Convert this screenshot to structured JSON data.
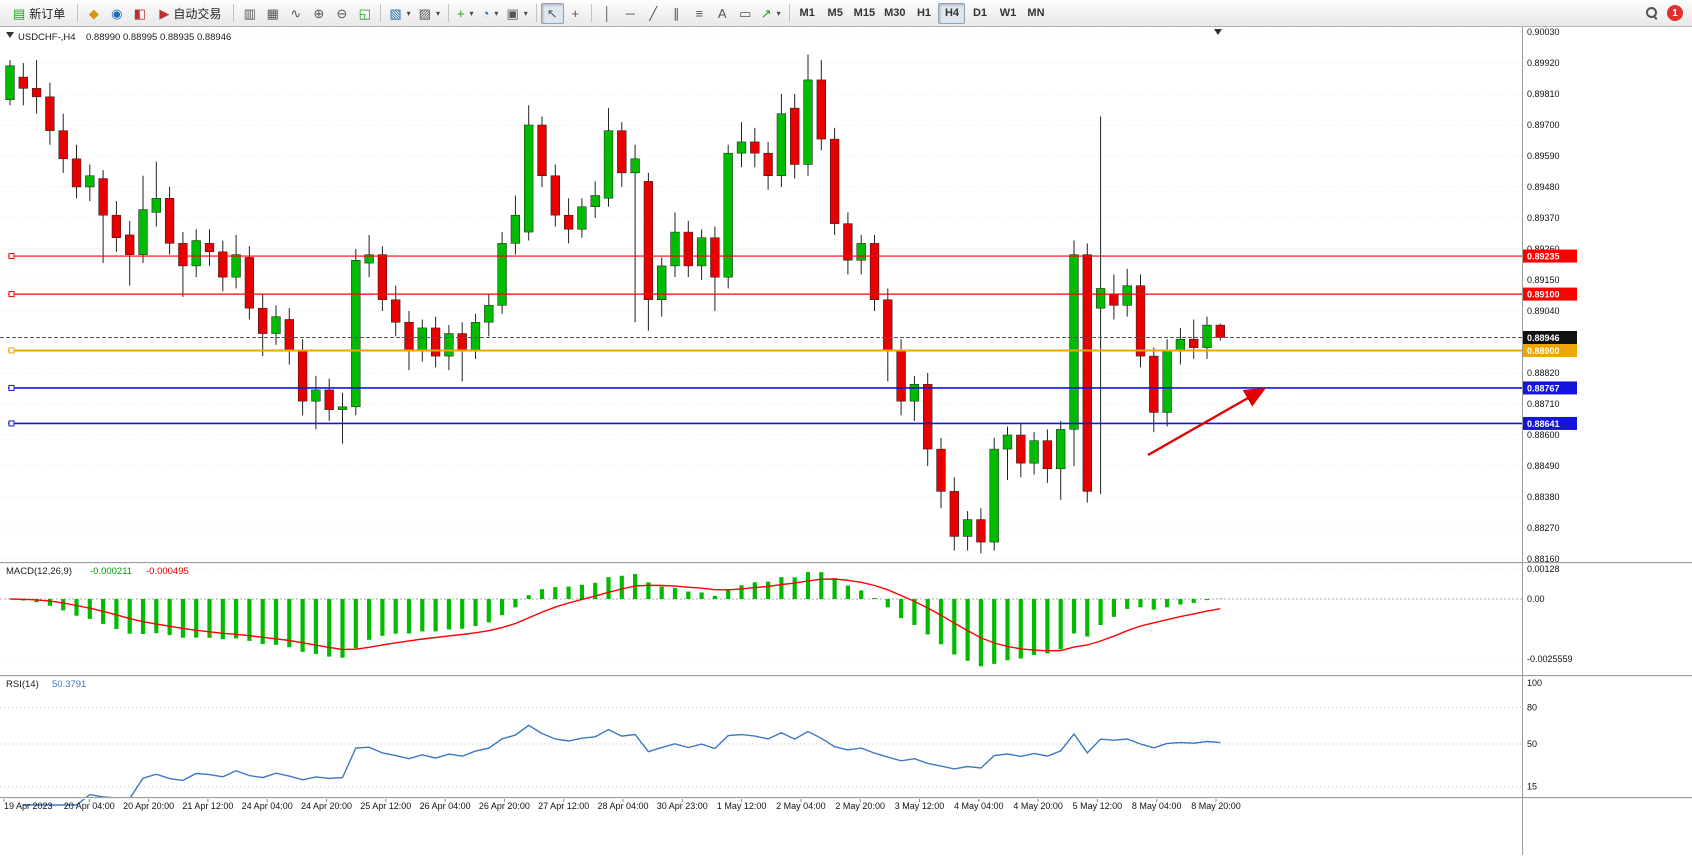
{
  "toolbar": {
    "new_order_label": "新订单",
    "auto_trading_label": "自动交易",
    "timeframes": [
      "M1",
      "M5",
      "M15",
      "M30",
      "H1",
      "H4",
      "D1",
      "W1",
      "MN"
    ],
    "active_timeframe": "H4",
    "notification_count": "1"
  },
  "icons": {
    "new_order": "▤",
    "favorites": "◆",
    "market_watch": "◉",
    "navigator": "◧",
    "auto_play": "▶",
    "bars": "▥",
    "candles": "▦",
    "line": "∿",
    "zoom_in": "⊕",
    "zoom_out": "⊖",
    "tile": "◱",
    "new_chart": "▧",
    "profiles": "▨",
    "indicators": "+",
    "periods": "◔",
    "templates": "▣",
    "cursor": "↖",
    "crosshair": "+",
    "vline": "│",
    "hline": "─",
    "trendline": "╱",
    "channel": "∥",
    "fibonacci": "≡",
    "text": "A",
    "label": "▭",
    "shapes": "↗",
    "caret": "▾"
  },
  "colors": {
    "bull": "#00BB00",
    "bear": "#E80000"
  },
  "chart_data": {
    "type": "candlestick",
    "symbol": "USDCHF-",
    "timeframe": "H4",
    "symbol_line": "USDCHF-,H4",
    "ohlc_line": "0.88990 0.88995 0.88935 0.88946",
    "price_axis": {
      "ticks": [
        "0.90030",
        "0.89920",
        "0.89810",
        "0.89700",
        "0.89590",
        "0.89480",
        "0.89370",
        "0.89260",
        "0.89150",
        "0.89040",
        "0.88930",
        "0.88820",
        "0.88710",
        "0.88600",
        "0.88490",
        "0.88380",
        "0.88270",
        "0.88160"
      ]
    },
    "time_axis": {
      "labels": [
        "19 Apr 2023",
        "20 Apr 04:00",
        "20 Apr 20:00",
        "21 Apr 12:00",
        "24 Apr 04:00",
        "24 Apr 20:00",
        "25 Apr 12:00",
        "26 Apr 04:00",
        "26 Apr 20:00",
        "27 Apr 12:00",
        "28 Apr 04:00",
        "30 Apr 23:00",
        "1 May 12:00",
        "2 May 04:00",
        "2 May 20:00",
        "3 May 12:00",
        "4 May 04:00",
        "4 May 20:00",
        "5 May 12:00",
        "8 May 04:00",
        "8 May 20:00"
      ]
    },
    "candles": [
      [
        0.8979,
        0.8993,
        0.8977,
        0.8991
      ],
      [
        0.8987,
        0.8992,
        0.8977,
        0.8983
      ],
      [
        0.8983,
        0.8993,
        0.8974,
        0.898
      ],
      [
        0.898,
        0.8985,
        0.8963,
        0.8968
      ],
      [
        0.8968,
        0.8974,
        0.8953,
        0.8958
      ],
      [
        0.8958,
        0.8963,
        0.8944,
        0.8948
      ],
      [
        0.8948,
        0.8956,
        0.8943,
        0.8952
      ],
      [
        0.8951,
        0.8954,
        0.8921,
        0.8938
      ],
      [
        0.8938,
        0.8943,
        0.8925,
        0.893
      ],
      [
        0.8931,
        0.8936,
        0.8913,
        0.8924
      ],
      [
        0.8924,
        0.8952,
        0.8921,
        0.894
      ],
      [
        0.8939,
        0.8957,
        0.8934,
        0.8944
      ],
      [
        0.8944,
        0.8948,
        0.8924,
        0.8928
      ],
      [
        0.8928,
        0.8932,
        0.8909,
        0.892
      ],
      [
        0.892,
        0.8933,
        0.8916,
        0.8929
      ],
      [
        0.8928,
        0.8933,
        0.892,
        0.8925
      ],
      [
        0.8925,
        0.8929,
        0.8911,
        0.8916
      ],
      [
        0.8916,
        0.8931,
        0.8912,
        0.8924
      ],
      [
        0.8923,
        0.8927,
        0.8901,
        0.8905
      ],
      [
        0.8905,
        0.891,
        0.8888,
        0.8896
      ],
      [
        0.8896,
        0.8906,
        0.8892,
        0.8902
      ],
      [
        0.8901,
        0.8905,
        0.8885,
        0.889
      ],
      [
        0.889,
        0.8894,
        0.8867,
        0.8872
      ],
      [
        0.8872,
        0.8881,
        0.8862,
        0.8876
      ],
      [
        0.8876,
        0.888,
        0.8865,
        0.8869
      ],
      [
        0.8869,
        0.8875,
        0.8857,
        0.887
      ],
      [
        0.887,
        0.8926,
        0.8867,
        0.8922
      ],
      [
        0.8921,
        0.8931,
        0.8916,
        0.8924
      ],
      [
        0.8924,
        0.8927,
        0.8904,
        0.8908
      ],
      [
        0.8908,
        0.8913,
        0.8895,
        0.89
      ],
      [
        0.89,
        0.8904,
        0.8883,
        0.889
      ],
      [
        0.889,
        0.8901,
        0.8886,
        0.8898
      ],
      [
        0.8898,
        0.8902,
        0.8884,
        0.8888
      ],
      [
        0.8888,
        0.8899,
        0.8883,
        0.8896
      ],
      [
        0.8896,
        0.89,
        0.8879,
        0.889
      ],
      [
        0.889,
        0.8903,
        0.8887,
        0.89
      ],
      [
        0.89,
        0.891,
        0.8895,
        0.8906
      ],
      [
        0.8906,
        0.8932,
        0.8903,
        0.8928
      ],
      [
        0.8928,
        0.8945,
        0.8924,
        0.8938
      ],
      [
        0.8932,
        0.8977,
        0.8929,
        0.897
      ],
      [
        0.897,
        0.8973,
        0.8948,
        0.8952
      ],
      [
        0.8952,
        0.8956,
        0.8934,
        0.8938
      ],
      [
        0.8938,
        0.8944,
        0.8928,
        0.8933
      ],
      [
        0.8933,
        0.8944,
        0.893,
        0.8941
      ],
      [
        0.8941,
        0.895,
        0.8937,
        0.8945
      ],
      [
        0.8944,
        0.8976,
        0.8941,
        0.8968
      ],
      [
        0.8968,
        0.8971,
        0.8948,
        0.8953
      ],
      [
        0.8953,
        0.8963,
        0.89,
        0.8958
      ],
      [
        0.895,
        0.8953,
        0.8897,
        0.8908
      ],
      [
        0.8908,
        0.8923,
        0.8902,
        0.892
      ],
      [
        0.892,
        0.8939,
        0.8916,
        0.8932
      ],
      [
        0.8932,
        0.8936,
        0.8916,
        0.892
      ],
      [
        0.892,
        0.8933,
        0.8915,
        0.893
      ],
      [
        0.893,
        0.8934,
        0.8904,
        0.8916
      ],
      [
        0.8916,
        0.8963,
        0.8912,
        0.896
      ],
      [
        0.896,
        0.8971,
        0.8955,
        0.8964
      ],
      [
        0.8964,
        0.8969,
        0.8955,
        0.896
      ],
      [
        0.896,
        0.8964,
        0.8947,
        0.8952
      ],
      [
        0.8952,
        0.8981,
        0.8948,
        0.8974
      ],
      [
        0.8976,
        0.8981,
        0.8951,
        0.8956
      ],
      [
        0.8956,
        0.8995,
        0.8952,
        0.8986
      ],
      [
        0.8986,
        0.8993,
        0.8961,
        0.8965
      ],
      [
        0.8965,
        0.8969,
        0.8931,
        0.8935
      ],
      [
        0.8935,
        0.8939,
        0.8917,
        0.8922
      ],
      [
        0.8922,
        0.8931,
        0.8917,
        0.8928
      ],
      [
        0.8928,
        0.8931,
        0.8904,
        0.8908
      ],
      [
        0.8908,
        0.8912,
        0.8879,
        0.889
      ],
      [
        0.889,
        0.8894,
        0.8867,
        0.8872
      ],
      [
        0.8872,
        0.8881,
        0.8865,
        0.8878
      ],
      [
        0.8878,
        0.8882,
        0.8849,
        0.8855
      ],
      [
        0.8855,
        0.8859,
        0.8834,
        0.884
      ],
      [
        0.884,
        0.8845,
        0.8819,
        0.8824
      ],
      [
        0.8824,
        0.8833,
        0.8819,
        0.883
      ],
      [
        0.883,
        0.8834,
        0.8818,
        0.8822
      ],
      [
        0.8822,
        0.8859,
        0.8819,
        0.8855
      ],
      [
        0.8855,
        0.8863,
        0.8844,
        0.886
      ],
      [
        0.886,
        0.8864,
        0.8845,
        0.885
      ],
      [
        0.885,
        0.8861,
        0.8846,
        0.8858
      ],
      [
        0.8858,
        0.8862,
        0.8843,
        0.8848
      ],
      [
        0.8848,
        0.8865,
        0.8837,
        0.8862
      ],
      [
        0.8862,
        0.8929,
        0.8849,
        0.8924
      ],
      [
        0.8924,
        0.8928,
        0.8836,
        0.884
      ],
      [
        0.8905,
        0.8973,
        0.8839,
        0.8912
      ],
      [
        0.891,
        0.8917,
        0.8901,
        0.8906
      ],
      [
        0.8906,
        0.8919,
        0.8902,
        0.8913
      ],
      [
        0.8913,
        0.8917,
        0.8884,
        0.8888
      ],
      [
        0.8888,
        0.8891,
        0.8861,
        0.8868
      ],
      [
        0.8868,
        0.8894,
        0.8863,
        0.889
      ],
      [
        0.889,
        0.8898,
        0.8885,
        0.8894
      ],
      [
        0.8894,
        0.8901,
        0.8887,
        0.8891
      ],
      [
        0.8891,
        0.8902,
        0.8887,
        0.8899
      ],
      [
        0.8899,
        0.88995,
        0.88935,
        0.88946
      ]
    ],
    "hlines": [
      {
        "price": 0.89235,
        "label": "0.89235",
        "color": "#FF0000",
        "width": 1.2
      },
      {
        "price": 0.891,
        "label": "0.89100",
        "color": "#FF0000",
        "width": 1.2
      },
      {
        "price": 0.889,
        "label": "0.88900",
        "color": "#EFA600",
        "width": 2
      },
      {
        "price": 0.88767,
        "label": "0.88767",
        "color": "#1414DC",
        "width": 1.6
      },
      {
        "price": 0.88641,
        "label": "0.88641",
        "color": "#1414DC",
        "width": 1.6
      }
    ],
    "current_price": {
      "value": 0.88946,
      "label": "0.88946",
      "line_color": "#555555",
      "badge_color": "#111111"
    },
    "indicators": {
      "macd": {
        "title": "MACD(12,26,9)",
        "value_main": "-0.000211",
        "value_signal": "-0.000495",
        "params": [
          12,
          26,
          9
        ],
        "ticks": [
          "0.00128",
          "0.00",
          "-0.0025559"
        ],
        "histogram_color": "#00BB00",
        "signal_color": "#FF0000"
      },
      "rsi": {
        "title": "RSI(14)",
        "value": "50.3791",
        "params": [
          14
        ],
        "ticks": [
          "100",
          "80",
          "50",
          "15"
        ],
        "line_color": "#3E78C2"
      }
    },
    "annotations": [
      {
        "type": "arrow",
        "color": "#E00000",
        "from": [
          1148,
          428
        ],
        "to": [
          1262,
          363
        ]
      }
    ]
  }
}
